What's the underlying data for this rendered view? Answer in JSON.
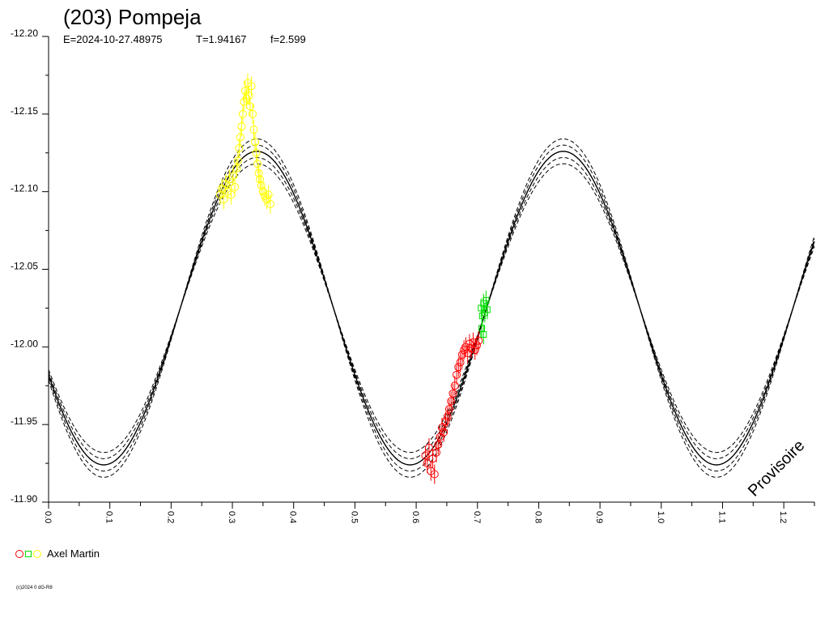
{
  "chart_data": {
    "type": "scatter",
    "title": "(203) Pompeja",
    "subtitle": {
      "epoch": "E=2024-10-27.48975",
      "period": "T=1.94167",
      "freq": "f=2.599"
    },
    "xlabel": "",
    "ylabel": "",
    "xlim": [
      0.0,
      1.25
    ],
    "ylim": [
      -11.9,
      -12.2
    ],
    "y_inverted": true,
    "x_tick_labels": [
      "0.0",
      "0.1",
      "0.2",
      "0.3",
      "0.4",
      "0.5",
      "0.6",
      "0.7",
      "0.8",
      "0.9",
      "1.0",
      "1.1",
      "1.2"
    ],
    "y_tick_labels": [
      "-12.20",
      "-12.15",
      "-12.10",
      "-12.05",
      "-12.00",
      "-11.95",
      "-11.90"
    ],
    "x_ticks": [
      0.0,
      0.1,
      0.2,
      0.3,
      0.4,
      0.5,
      0.6,
      0.7,
      0.8,
      0.9,
      1.0,
      1.1,
      1.2
    ],
    "y_ticks": [
      -12.2,
      -12.15,
      -12.1,
      -12.05,
      -12.0,
      -11.95,
      -11.9
    ],
    "model_curve": {
      "mean": -12.025,
      "amplitude": 0.101,
      "max_phase": 0.34,
      "period_in_phase": 0.5,
      "dashed_offsets": [
        -0.008,
        -0.004,
        0.004,
        0.008
      ]
    },
    "series": [
      {
        "color": "#ffff00",
        "marker": "circle",
        "points": [
          [
            0.28,
            -12.098
          ],
          [
            0.283,
            -12.102
          ],
          [
            0.286,
            -12.095
          ],
          [
            0.289,
            -12.105
          ],
          [
            0.292,
            -12.1
          ],
          [
            0.295,
            -12.108
          ],
          [
            0.298,
            -12.098
          ],
          [
            0.301,
            -12.11
          ],
          [
            0.304,
            -12.103
          ],
          [
            0.307,
            -12.115
          ],
          [
            0.309,
            -12.12
          ],
          [
            0.311,
            -12.128
          ],
          [
            0.313,
            -12.135
          ],
          [
            0.315,
            -12.142
          ],
          [
            0.317,
            -12.15
          ],
          [
            0.319,
            -12.158
          ],
          [
            0.321,
            -12.165
          ],
          [
            0.323,
            -12.16
          ],
          [
            0.325,
            -12.17
          ],
          [
            0.327,
            -12.162
          ],
          [
            0.329,
            -12.155
          ],
          [
            0.331,
            -12.168
          ],
          [
            0.333,
            -12.15
          ],
          [
            0.335,
            -12.14
          ],
          [
            0.337,
            -12.132
          ],
          [
            0.339,
            -12.125
          ],
          [
            0.341,
            -12.118
          ],
          [
            0.343,
            -12.112
          ],
          [
            0.345,
            -12.108
          ],
          [
            0.347,
            -12.104
          ],
          [
            0.35,
            -12.1
          ],
          [
            0.353,
            -12.097
          ],
          [
            0.356,
            -12.095
          ],
          [
            0.359,
            -12.098
          ],
          [
            0.362,
            -12.092
          ]
        ]
      },
      {
        "color": "#ff0000",
        "marker": "circle",
        "points": [
          [
            0.615,
            -11.93
          ],
          [
            0.618,
            -11.925
          ],
          [
            0.621,
            -11.935
          ],
          [
            0.624,
            -11.92
          ],
          [
            0.627,
            -11.928
          ],
          [
            0.63,
            -11.918
          ],
          [
            0.633,
            -11.932
          ],
          [
            0.636,
            -11.937
          ],
          [
            0.639,
            -11.942
          ],
          [
            0.642,
            -11.948
          ],
          [
            0.645,
            -11.945
          ],
          [
            0.648,
            -11.952
          ],
          [
            0.651,
            -11.955
          ],
          [
            0.654,
            -11.96
          ],
          [
            0.657,
            -11.965
          ],
          [
            0.66,
            -11.97
          ],
          [
            0.663,
            -11.975
          ],
          [
            0.666,
            -11.982
          ],
          [
            0.669,
            -11.987
          ],
          [
            0.672,
            -11.99
          ],
          [
            0.675,
            -11.995
          ],
          [
            0.678,
            -11.998
          ],
          [
            0.681,
            -12.0
          ],
          [
            0.684,
            -11.996
          ],
          [
            0.687,
            -12.002
          ],
          [
            0.69,
            -11.999
          ],
          [
            0.693,
            -12.003
          ],
          [
            0.696,
            -11.998
          ],
          [
            0.699,
            -12.001
          ],
          [
            0.702,
            -12.004
          ]
        ]
      },
      {
        "color": "#00dd00",
        "marker": "square",
        "points": [
          [
            0.706,
            -12.025
          ],
          [
            0.708,
            -12.02
          ],
          [
            0.71,
            -12.028
          ],
          [
            0.712,
            -12.022
          ],
          [
            0.714,
            -12.03
          ],
          [
            0.716,
            -12.024
          ],
          [
            0.71,
            -12.008
          ],
          [
            0.707,
            -12.012
          ]
        ]
      }
    ],
    "legend": {
      "observer": "Axel Martin",
      "markers": [
        {
          "shape": "circle",
          "color": "#ff0000"
        },
        {
          "shape": "square",
          "color": "#00dd00"
        },
        {
          "shape": "circle",
          "color": "#ffff00"
        }
      ]
    },
    "watermark": "Provisoire",
    "copyright": "(c)2024 0 dG-R8"
  }
}
